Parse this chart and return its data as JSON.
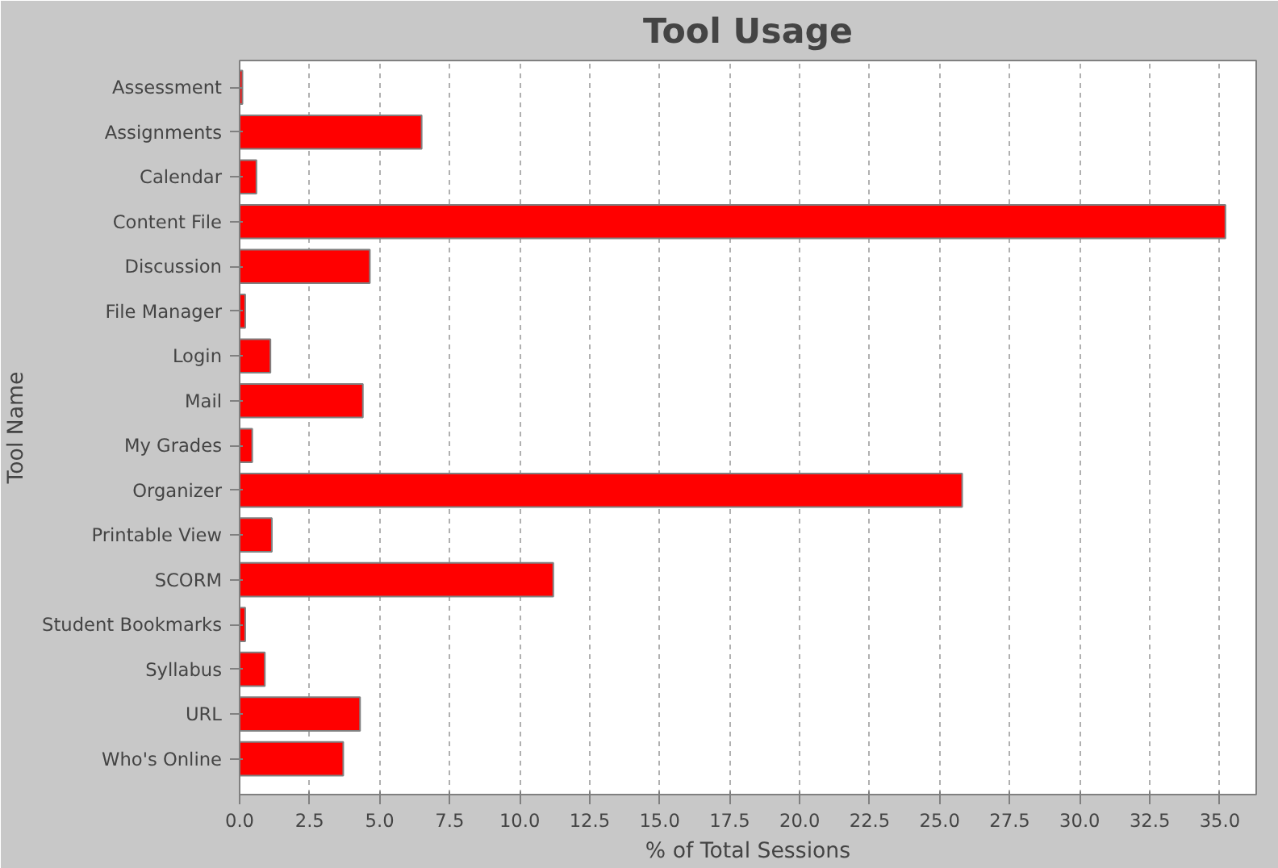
{
  "chart_data": {
    "type": "bar",
    "orientation": "horizontal",
    "title": "Tool Usage",
    "xlabel": "% of Total Sessions",
    "ylabel": "Tool Name",
    "categories": [
      "Assessment",
      "Assignments",
      "Calendar",
      "Content File",
      "Discussion",
      "File Manager",
      "Login",
      "Mail",
      "My Grades",
      "Organizer",
      "Printable View",
      "SCORM",
      "Student Bookmarks",
      "Syllabus",
      "URL",
      "Who's Online"
    ],
    "values": [
      0.1,
      6.5,
      0.6,
      35.2,
      4.65,
      0.2,
      1.1,
      4.4,
      0.45,
      25.8,
      1.15,
      11.2,
      0.2,
      0.9,
      4.3,
      3.7
    ],
    "color": "#ff0000",
    "xlim": [
      0,
      36.3
    ],
    "xticks": [
      {
        "value": 0,
        "label": "0.0"
      },
      {
        "value": 2.5,
        "label": "2.5"
      },
      {
        "value": 5,
        "label": "5.0"
      },
      {
        "value": 7.5,
        "label": "7.5"
      },
      {
        "value": 10,
        "label": "10.0"
      },
      {
        "value": 12.5,
        "label": "12.5"
      },
      {
        "value": 15,
        "label": "15.0"
      },
      {
        "value": 17.5,
        "label": "17.5"
      },
      {
        "value": 20,
        "label": "20.0"
      },
      {
        "value": 22.5,
        "label": "22.5"
      },
      {
        "value": 25,
        "label": "25.0"
      },
      {
        "value": 27.5,
        "label": "27.5"
      },
      {
        "value": 30,
        "label": "30.0"
      },
      {
        "value": 32.5,
        "label": "32.5"
      },
      {
        "value": 35,
        "label": "35.0"
      }
    ],
    "grid": "x"
  }
}
